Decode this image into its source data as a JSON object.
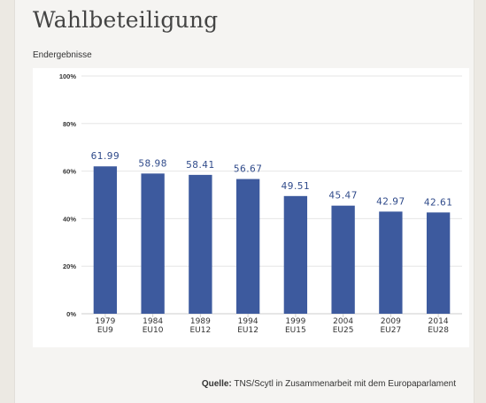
{
  "page": {
    "title": "Wahlbeteiligung",
    "subtitle": "Endergebnisse",
    "source_label": "Quelle:",
    "source_text": " TNS/Scytl in Zusammenarbeit mit dem Europaparlament"
  },
  "colors": {
    "bar": "#3d5a9e",
    "value_label": "#2f4a8a",
    "grid": "#e6e6e6",
    "axis_text": "#333333"
  },
  "chart_data": {
    "type": "bar",
    "categories": [
      "1979 EU9",
      "1984 EU10",
      "1989 EU12",
      "1994 EU12",
      "1999 EU15",
      "2004 EU25",
      "2009 EU27",
      "2014 EU28"
    ],
    "category_lines": [
      [
        "1979",
        "EU9"
      ],
      [
        "1984",
        "EU10"
      ],
      [
        "1989",
        "EU12"
      ],
      [
        "1994",
        "EU12"
      ],
      [
        "1999",
        "EU15"
      ],
      [
        "2004",
        "EU25"
      ],
      [
        "2009",
        "EU27"
      ],
      [
        "2014",
        "EU28"
      ]
    ],
    "values": [
      61.99,
      58.98,
      58.41,
      56.67,
      49.51,
      45.47,
      42.97,
      42.61
    ],
    "value_labels": [
      "61.99",
      "58.98",
      "58.41",
      "56.67",
      "49.51",
      "45.47",
      "42.97",
      "42.61"
    ],
    "yticks": [
      0,
      20,
      40,
      60,
      80,
      100
    ],
    "ytick_labels": [
      "0%",
      "20%",
      "40%",
      "60%",
      "80%",
      "100%"
    ],
    "ylim": [
      0,
      100
    ],
    "grid": true
  }
}
